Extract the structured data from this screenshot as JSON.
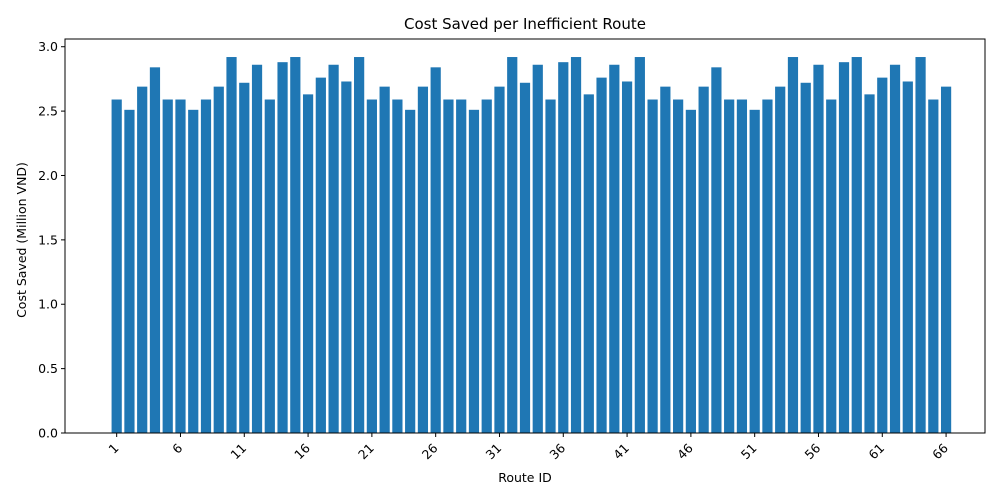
{
  "chart_data": {
    "type": "bar",
    "title": "Cost Saved per Inefficient Route",
    "xlabel": "Route ID",
    "ylabel": "Cost Saved (Million VND)",
    "ylim": [
      0,
      3.06
    ],
    "yticks": [
      "0.0",
      "0.5",
      "1.0",
      "1.5",
      "2.0",
      "2.5",
      "3.0"
    ],
    "xtick_labels": [
      "1",
      "6",
      "11",
      "16",
      "21",
      "26",
      "31",
      "36",
      "41",
      "46",
      "51",
      "56",
      "61",
      "66"
    ],
    "bar_color": "#1f77b4",
    "grid": false,
    "categories": [
      1,
      2,
      3,
      4,
      5,
      6,
      7,
      8,
      9,
      10,
      11,
      12,
      13,
      14,
      15,
      16,
      17,
      18,
      19,
      20,
      21,
      22,
      23,
      24,
      25,
      26,
      27,
      28,
      29,
      30,
      31,
      32,
      33,
      34,
      35,
      36,
      37,
      38,
      39,
      40,
      41,
      42,
      43,
      44,
      45,
      46,
      47,
      48,
      49,
      50,
      51,
      52,
      53,
      54,
      55,
      56,
      57,
      58,
      59,
      60,
      61,
      62,
      63,
      64,
      65,
      66
    ],
    "values": [
      2.59,
      2.51,
      2.69,
      2.84,
      2.59,
      2.59,
      2.51,
      2.59,
      2.69,
      2.92,
      2.72,
      2.86,
      2.59,
      2.88,
      2.92,
      2.63,
      2.76,
      2.86,
      2.73,
      2.92,
      2.59,
      2.69,
      2.59,
      2.51,
      2.69,
      2.84,
      2.59,
      2.59,
      2.51,
      2.59,
      2.69,
      2.92,
      2.72,
      2.86,
      2.59,
      2.88,
      2.92,
      2.63,
      2.76,
      2.86,
      2.73,
      2.92,
      2.59,
      2.69,
      2.59,
      2.51,
      2.69,
      2.84,
      2.59,
      2.59,
      2.51,
      2.59,
      2.69,
      2.92,
      2.72,
      2.86,
      2.59,
      2.88,
      2.92,
      2.63,
      2.76,
      2.86,
      2.73,
      2.92,
      2.59,
      2.69
    ]
  }
}
